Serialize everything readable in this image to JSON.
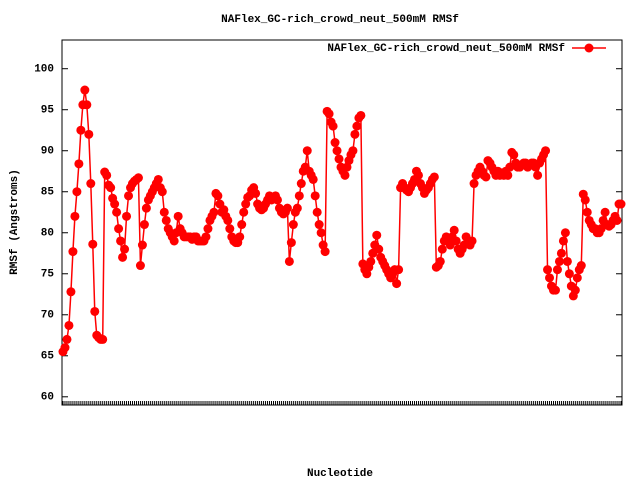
{
  "chart_data": {
    "type": "line",
    "title": "NAFlex_GC-rich_crowd_neut_500mM RMSf",
    "ylabel": "RMSf (Angstroms)",
    "xlabel": "Nucleotide",
    "ylim": [
      59,
      103.5
    ],
    "yticks": [
      60,
      65,
      70,
      75,
      80,
      85,
      90,
      95,
      100
    ],
    "legend": "top-right",
    "series": [
      {
        "name": "NAFlex_GC-rich_crowd_neut_500mM RMSf",
        "color": "#ff0000",
        "values": [
          65.5,
          66,
          67,
          68.7,
          72.8,
          77.7,
          82,
          85,
          88.4,
          92.5,
          95.6,
          97.4,
          95.6,
          92,
          86,
          78.6,
          70.4,
          67.5,
          67.2,
          67,
          67,
          87.4,
          87,
          85.8,
          85.5,
          84.2,
          83.5,
          82.5,
          80.5,
          79,
          77,
          78,
          82,
          84.5,
          85.5,
          86,
          86.3,
          86.5,
          86.7,
          76,
          78.5,
          81,
          83,
          84,
          84.5,
          85,
          85.5,
          86,
          86.5,
          85.5,
          85,
          82.5,
          81.5,
          80.5,
          80,
          79.5,
          79,
          80,
          82,
          80.5,
          80,
          79.5,
          79.5,
          79.5,
          79.5,
          79.2,
          79.5,
          79.5,
          79,
          79,
          79,
          79,
          79.5,
          80.5,
          81.5,
          82,
          82.5,
          84.8,
          84.5,
          83.5,
          82.5,
          82.8,
          82,
          81.5,
          80.5,
          79.5,
          79,
          78.8,
          78.8,
          79.5,
          81,
          82.5,
          83.5,
          84.3,
          84.5,
          85.2,
          85.5,
          84.8,
          83.5,
          83,
          82.8,
          83,
          83.5,
          84,
          84.5,
          84,
          84.3,
          84.5,
          84,
          83,
          82.5,
          82.3,
          82.5,
          83,
          76.5,
          78.8,
          81,
          82.5,
          83,
          84.5,
          86,
          87.5,
          88,
          90,
          87.5,
          87,
          86.5,
          84.5,
          82.5,
          81,
          80,
          78.5,
          77.7,
          94.8,
          94.5,
          93.5,
          93,
          91,
          90,
          89,
          88,
          87.5,
          87,
          88,
          88.8,
          89.5,
          90,
          92,
          93,
          94,
          94.3,
          76.2,
          75.5,
          75,
          75.8,
          76.5,
          77.5,
          78.5,
          79.7,
          78,
          77,
          76.5,
          76,
          75.5,
          75,
          74.5,
          75,
          75.5,
          73.8,
          75.5,
          85.5,
          86,
          85.5,
          85.2,
          85,
          85.5,
          86,
          86.5,
          87.5,
          87,
          86,
          85.5,
          84.8,
          85.2,
          85.5,
          86,
          86.5,
          86.8,
          75.8,
          76,
          76.5,
          78,
          79,
          79.5,
          79,
          78.5,
          79.5,
          80.3,
          79,
          78,
          77.5,
          78,
          78.5,
          79.5,
          79,
          78.5,
          79,
          86,
          87,
          87.5,
          88,
          87.5,
          87,
          86.8,
          88.8,
          88.5,
          88,
          87.5,
          87,
          87.5,
          87,
          87.3,
          87,
          87.5,
          87,
          88,
          89.8,
          89.5,
          88.5,
          88,
          88,
          88.3,
          88.5,
          88.5,
          88,
          88.2,
          88.5,
          88.5,
          88,
          87,
          88.5,
          89,
          89.5,
          90,
          75.5,
          74.5,
          73.5,
          73,
          73,
          75.5,
          76.5,
          77.5,
          79,
          80,
          76.5,
          75,
          73.5,
          72.3,
          73,
          74.5,
          75.5,
          76,
          84.7,
          84,
          82.5,
          81.5,
          81,
          80.5,
          80.5,
          80,
          80,
          80.5,
          81.5,
          82.5,
          81,
          80.8,
          81,
          81.5,
          82,
          81.5,
          83.5,
          83.5
        ]
      }
    ]
  }
}
